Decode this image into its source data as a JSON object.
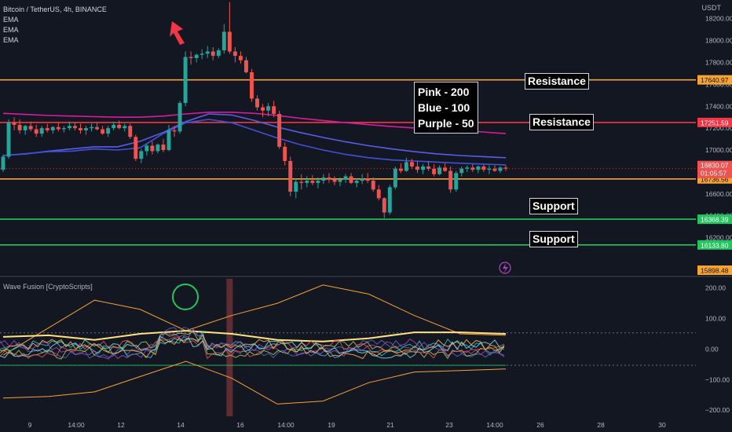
{
  "header": {
    "symbol": "Bitcoin / TetherUS, 4h, BINANCE",
    "indicators": [
      "EMA",
      "EMA",
      "EMA"
    ],
    "currency": "USDT",
    "oscillator_title": "Wave Fusion [CryptoScripts]"
  },
  "annotations": {
    "ema_key": [
      "Pink - 200",
      "Blue - 100",
      "Purple - 50"
    ],
    "resistance_1": "Resistance",
    "resistance_2": "Resistance",
    "support_1": "Support",
    "support_2": "Support"
  },
  "colors": {
    "background": "#131722",
    "bull": "#26a69a",
    "bear": "#ef5350",
    "orange_level": "#f7a233",
    "red_level": "#f23645",
    "green_level": "#22c55e",
    "ema200": "#d81b9f",
    "ema100": "#5b5ce6",
    "ema50": "#3f51d9",
    "arrow": "#f23645",
    "circle": "#22c55e"
  },
  "chart_data": [
    {
      "type": "candlestick",
      "title": "Bitcoin / TetherUS, 4h, BINANCE",
      "y_unit": "USDT",
      "ylim": [
        15860,
        18370
      ],
      "y_ticks": [
        16200.0,
        16400.0,
        16600.0,
        16800.0,
        17000.0,
        17200.0,
        17400.0,
        17600.0,
        17800.0,
        18000.0,
        18200.0
      ],
      "x_tick_labels": [
        "9",
        "14:00",
        "12",
        "14",
        "16",
        "14:00",
        "19",
        "21",
        "23",
        "14:00",
        "26",
        "28",
        "30"
      ],
      "horizontal_levels": [
        {
          "value": 17640.97,
          "label": "17640.97",
          "color": "#f7a233"
        },
        {
          "value": 17251.59,
          "label": "17251.59",
          "color": "#f23645"
        },
        {
          "value": 16736.56,
          "label": "16736.56",
          "color": "#f7a233"
        },
        {
          "value": 16368.39,
          "label": "16368.39",
          "color": "#22c55e"
        },
        {
          "value": 16133.8,
          "label": "16133.80",
          "color": "#22c55e"
        }
      ],
      "price_label_current": {
        "value": "16830.07",
        "countdown": "01:05:57"
      },
      "price_label_extra": "15898.48",
      "series": [
        {
          "name": "Pink - 200",
          "values": [
            17335,
            17325,
            17316,
            17310,
            17305,
            17300,
            17300,
            17310,
            17330,
            17345,
            17345,
            17335,
            17316,
            17290,
            17270,
            17250,
            17232,
            17215,
            17202,
            17190,
            17178,
            17165,
            17150
          ]
        },
        {
          "name": "Blue - 100",
          "values": [
            16950,
            16965,
            16990,
            17010,
            17030,
            17030,
            17080,
            17160,
            17260,
            17330,
            17320,
            17270,
            17210,
            17160,
            17115,
            17075,
            17040,
            17010,
            16985,
            16965,
            16950,
            16940,
            16930
          ]
        },
        {
          "name": "Purple - 50",
          "values": [
            16950,
            16968,
            16985,
            16990,
            17010,
            17000,
            17020,
            17150,
            17250,
            17280,
            17250,
            17180,
            17110,
            17050,
            17000,
            16960,
            16930,
            16910,
            16900,
            16890,
            16880,
            16872,
            16865
          ]
        }
      ],
      "candles": [
        [
          16820,
          16960,
          16800,
          16940
        ],
        [
          16940,
          17280,
          16920,
          17250
        ],
        [
          17250,
          17300,
          17180,
          17230
        ],
        [
          17230,
          17280,
          17150,
          17180
        ],
        [
          17180,
          17230,
          17140,
          17220
        ],
        [
          17220,
          17260,
          17170,
          17190
        ],
        [
          17190,
          17230,
          17120,
          17150
        ],
        [
          17150,
          17220,
          17120,
          17200
        ],
        [
          17200,
          17240,
          17160,
          17180
        ],
        [
          17180,
          17220,
          17150,
          17210
        ],
        [
          17210,
          17250,
          17170,
          17190
        ],
        [
          17190,
          17220,
          17160,
          17200
        ],
        [
          17200,
          17260,
          17180,
          17220
        ],
        [
          17220,
          17250,
          17180,
          17200
        ],
        [
          17200,
          17240,
          17150,
          17180
        ],
        [
          17180,
          17220,
          17140,
          17200
        ],
        [
          17200,
          17240,
          17170,
          17210
        ],
        [
          17210,
          17250,
          17180,
          17190
        ],
        [
          17190,
          17220,
          17140,
          17150
        ],
        [
          17150,
          17220,
          17120,
          17200
        ],
        [
          17200,
          17260,
          17180,
          17230
        ],
        [
          17230,
          17270,
          17190,
          17200
        ],
        [
          17200,
          17240,
          17170,
          17220
        ],
        [
          17220,
          17240,
          17100,
          17120
        ],
        [
          17120,
          17140,
          16900,
          16920
        ],
        [
          16920,
          17010,
          16880,
          16990
        ],
        [
          16990,
          17060,
          16950,
          17040
        ],
        [
          17040,
          17080,
          16960,
          16990
        ],
        [
          16990,
          17060,
          16970,
          17050
        ],
        [
          17050,
          17100,
          16980,
          17000
        ],
        [
          17000,
          17230,
          16990,
          17180
        ],
        [
          17180,
          17220,
          17120,
          17170
        ],
        [
          17170,
          17450,
          17150,
          17430
        ],
        [
          17430,
          17900,
          17400,
          17850
        ],
        [
          17850,
          17900,
          17780,
          17840
        ],
        [
          17840,
          17880,
          17800,
          17870
        ],
        [
          17870,
          17920,
          17830,
          17880
        ],
        [
          17880,
          17950,
          17840,
          17900
        ],
        [
          17900,
          17940,
          17820,
          17860
        ],
        [
          17860,
          17930,
          17840,
          17910
        ],
        [
          17910,
          18150,
          17880,
          18080
        ],
        [
          18080,
          18350,
          17880,
          17900
        ],
        [
          17900,
          17940,
          17800,
          17860
        ],
        [
          17860,
          17900,
          17790,
          17820
        ],
        [
          17820,
          17850,
          17700,
          17710
        ],
        [
          17710,
          17740,
          17440,
          17470
        ],
        [
          17470,
          17500,
          17360,
          17390
        ],
        [
          17390,
          17420,
          17300,
          17360
        ],
        [
          17360,
          17430,
          17310,
          17400
        ],
        [
          17400,
          17450,
          17300,
          17330
        ],
        [
          17330,
          17360,
          17010,
          17030
        ],
        [
          17030,
          17070,
          16860,
          16900
        ],
        [
          16900,
          16940,
          16580,
          16620
        ],
        [
          16620,
          16740,
          16560,
          16710
        ],
        [
          16710,
          16780,
          16640,
          16700
        ],
        [
          16700,
          16760,
          16660,
          16720
        ],
        [
          16720,
          16770,
          16680,
          16700
        ],
        [
          16700,
          16750,
          16650,
          16720
        ],
        [
          16720,
          16780,
          16690,
          16750
        ],
        [
          16750,
          16790,
          16700,
          16730
        ],
        [
          16730,
          16760,
          16680,
          16710
        ],
        [
          16710,
          16750,
          16670,
          16730
        ],
        [
          16730,
          16780,
          16700,
          16760
        ],
        [
          16760,
          16790,
          16690,
          16700
        ],
        [
          16700,
          16740,
          16660,
          16720
        ],
        [
          16720,
          16780,
          16690,
          16740
        ],
        [
          16740,
          16790,
          16700,
          16720
        ],
        [
          16720,
          16750,
          16620,
          16640
        ],
        [
          16640,
          16680,
          16540,
          16560
        ],
        [
          16560,
          16570,
          16380,
          16430
        ],
        [
          16430,
          16680,
          16410,
          16660
        ],
        [
          16660,
          16850,
          16640,
          16830
        ],
        [
          16830,
          16880,
          16790,
          16810
        ],
        [
          16810,
          16930,
          16800,
          16890
        ],
        [
          16890,
          16920,
          16830,
          16850
        ],
        [
          16850,
          16900,
          16790,
          16820
        ],
        [
          16820,
          16870,
          16780,
          16850
        ],
        [
          16850,
          16900,
          16810,
          16830
        ],
        [
          16830,
          16870,
          16760,
          16780
        ],
        [
          16780,
          16860,
          16770,
          16840
        ],
        [
          16840,
          16880,
          16800,
          16810
        ],
        [
          16810,
          16850,
          16610,
          16640
        ],
        [
          16640,
          16810,
          16620,
          16790
        ],
        [
          16790,
          16850,
          16760,
          16830
        ],
        [
          16830,
          16860,
          16800,
          16840
        ],
        [
          16840,
          16870,
          16800,
          16820
        ],
        [
          16820,
          16860,
          16790,
          16850
        ],
        [
          16850,
          16870,
          16800,
          16820
        ],
        [
          16820,
          16860,
          16780,
          16830
        ],
        [
          16830,
          16860,
          16800,
          16810
        ],
        [
          16810,
          16850,
          16790,
          16840
        ],
        [
          16840,
          16860,
          16810,
          16830
        ]
      ]
    },
    {
      "type": "line",
      "title": "Wave Fusion [CryptoScripts]",
      "ylim": [
        -220,
        230
      ],
      "y_ticks": [
        200.0,
        100.0,
        0.0,
        -100.0,
        -200.0
      ],
      "dashed_levels": [
        53,
        -53
      ],
      "series": [
        {
          "name": "upper band",
          "values": [
            -20,
            70,
            160,
            130,
            60,
            110,
            150,
            210,
            180,
            110,
            50,
            45
          ]
        },
        {
          "name": "lower band",
          "values": [
            -160,
            -155,
            -140,
            -90,
            -40,
            -95,
            -180,
            -170,
            -110,
            -75,
            -70,
            -65
          ]
        },
        {
          "name": "wave",
          "values": [
            40,
            45,
            30,
            50,
            60,
            50,
            30,
            25,
            35,
            55,
            55,
            50
          ]
        }
      ]
    }
  ]
}
